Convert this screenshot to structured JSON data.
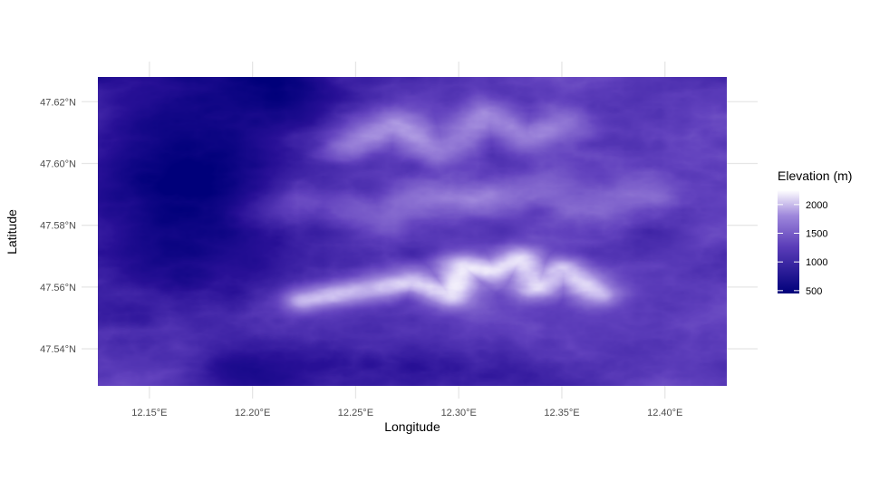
{
  "chart_data": {
    "type": "heatmap",
    "title": "",
    "xlabel": "Longitude",
    "ylabel": "Latitude",
    "x_ticks": [
      "12.15°E",
      "12.20°E",
      "12.25°E",
      "12.30°E",
      "12.35°E",
      "12.40°E"
    ],
    "y_ticks": [
      "47.54°N",
      "47.56°N",
      "47.58°N",
      "47.60°N",
      "47.62°N"
    ],
    "xlim": [
      12.125,
      12.43
    ],
    "ylim": [
      47.528,
      47.628
    ],
    "grid": true,
    "legend": {
      "title": "Elevation (m)",
      "placement": "right",
      "ticks": [
        "2000",
        "1500",
        "1000",
        "500"
      ],
      "range": [
        450,
        2250
      ],
      "colors": {
        "low": "#00007a",
        "mid": "#6a4dc4",
        "high": "#ffffff"
      }
    },
    "description_features": {
      "valley_low_elevation_m": 500,
      "main_ridge_max_elevation_m": 2250,
      "main_ridge_lat": 47.557
    }
  }
}
